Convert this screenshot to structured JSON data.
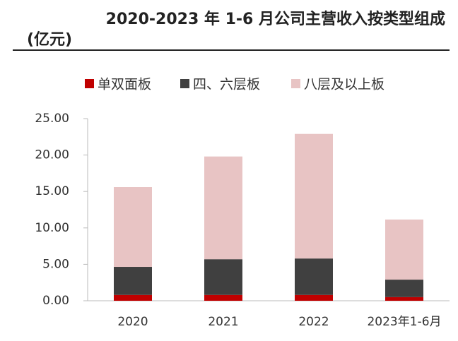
{
  "chart_data": {
    "type": "stacked_bar",
    "title": [
      "2020-2023 年 1-6 月公司主营收入按类型组成",
      "(亿元)"
    ],
    "categories": [
      "2020",
      "2021",
      "2022",
      "2023年1-6月"
    ],
    "series": [
      {
        "name": "单双面板",
        "color": "#c00000",
        "values": [
          0.8,
          0.8,
          0.8,
          0.5
        ]
      },
      {
        "name": "四、六层板",
        "color": "#404040",
        "values": [
          3.85,
          4.9,
          5.0,
          2.4
        ]
      },
      {
        "name": "八层及以上板",
        "color": "#e8c4c4",
        "values": [
          10.95,
          14.1,
          17.1,
          8.25
        ]
      }
    ],
    "ylim": [
      0,
      25
    ],
    "yticks": [
      {
        "value": 0,
        "label": "0.00"
      },
      {
        "value": 5,
        "label": "5.00"
      },
      {
        "value": 10,
        "label": "10.00"
      },
      {
        "value": 15,
        "label": "15.00"
      },
      {
        "value": 20,
        "label": "20.00"
      },
      {
        "value": 25,
        "label": "25.00"
      }
    ]
  }
}
